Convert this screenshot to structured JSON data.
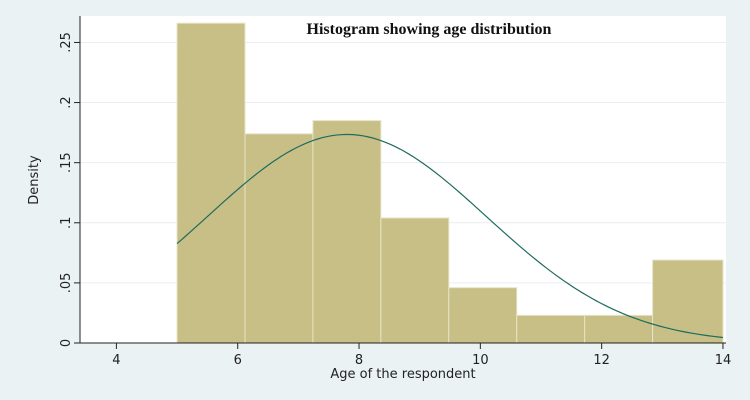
{
  "colors": {
    "outer_background": "#eaf2f3",
    "plot_background": "#ffffff",
    "bar_fill": "#c7bf86",
    "bar_edge": "#e7e3c6",
    "curve": "#1f6b5f",
    "grid": "#e9eef0",
    "axis": "#222222"
  },
  "chart_data": {
    "type": "bar",
    "title": "Histogram showing age distribution",
    "xlabel": "Age of the respondent",
    "ylabel": "Density",
    "xlim": [
      3.4,
      14.05
    ],
    "ylim": [
      0,
      0.272
    ],
    "grid": true,
    "legend": "none",
    "x_ticks": [
      {
        "value": 4,
        "label": "4"
      },
      {
        "value": 6,
        "label": "6"
      },
      {
        "value": 8,
        "label": "8"
      },
      {
        "value": 10,
        "label": "10"
      },
      {
        "value": 12,
        "label": "12"
      },
      {
        "value": 14,
        "label": "14"
      }
    ],
    "y_ticks": [
      {
        "value": 0,
        "label": "0"
      },
      {
        "value": 0.05,
        "label": ".05"
      },
      {
        "value": 0.1,
        "label": ".1"
      },
      {
        "value": 0.15,
        "label": ".15"
      },
      {
        "value": 0.2,
        "label": ".2"
      },
      {
        "value": 0.25,
        "label": ".25"
      }
    ],
    "bins": [
      {
        "start": 5.0,
        "end": 6.12,
        "density": 0.266
      },
      {
        "start": 6.12,
        "end": 7.24,
        "density": 0.174
      },
      {
        "start": 7.24,
        "end": 8.36,
        "density": 0.185
      },
      {
        "start": 8.36,
        "end": 9.48,
        "density": 0.104
      },
      {
        "start": 9.48,
        "end": 10.6,
        "density": 0.046
      },
      {
        "start": 10.6,
        "end": 11.72,
        "density": 0.023
      },
      {
        "start": 11.72,
        "end": 12.84,
        "density": 0.023
      },
      {
        "start": 12.84,
        "end": 14.0,
        "density": 0.069
      }
    ],
    "normal_curve": {
      "mean": 7.8,
      "sd": 2.3,
      "x_start": 5.0,
      "x_end": 14.0
    }
  }
}
